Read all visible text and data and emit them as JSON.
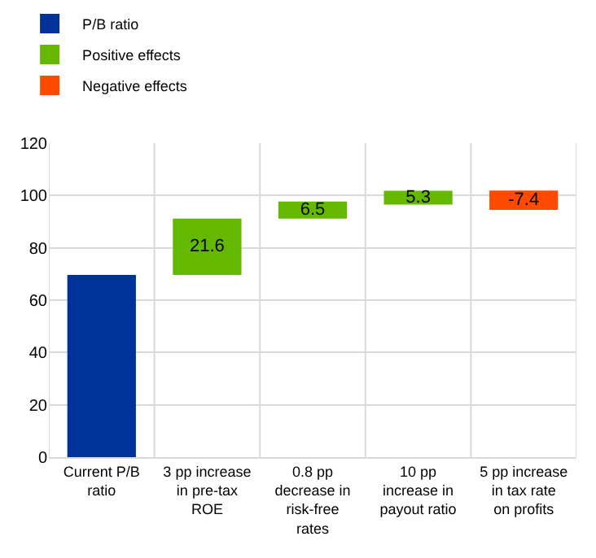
{
  "chart_data": {
    "type": "bar",
    "categories": [
      "Current P/B ratio",
      "3 pp increase in pre-tax ROE",
      "0.8 pp decrease in risk-free rates",
      "10 pp increase in payout ratio",
      "5 pp increase in tax rate on profits"
    ],
    "series": [
      {
        "name": "P/B ratio",
        "color": "#003299",
        "values": [
          69.6,
          null,
          null,
          null,
          null
        ],
        "base": [
          0,
          null,
          null,
          null,
          null
        ],
        "value_labels": [
          null,
          null,
          null,
          null,
          null
        ]
      },
      {
        "name": "Positive effects",
        "color": "#65b800",
        "values": [
          null,
          21.6,
          6.5,
          5.3,
          null
        ],
        "base": [
          null,
          69.6,
          91.2,
          96.5,
          null
        ],
        "value_labels": [
          null,
          "21.6",
          "6.5",
          "5.3",
          null
        ]
      },
      {
        "name": "Negative effects",
        "color": "#ff4b00",
        "values": [
          null,
          null,
          null,
          null,
          -7.4
        ],
        "base": [
          null,
          null,
          null,
          null,
          101.9
        ],
        "value_labels": [
          null,
          null,
          null,
          null,
          "-7.4"
        ]
      }
    ],
    "ylim": [
      0,
      120
    ],
    "yticks": [
      0,
      20,
      40,
      60,
      80,
      100,
      120
    ],
    "grid": true,
    "legend": "top left"
  }
}
